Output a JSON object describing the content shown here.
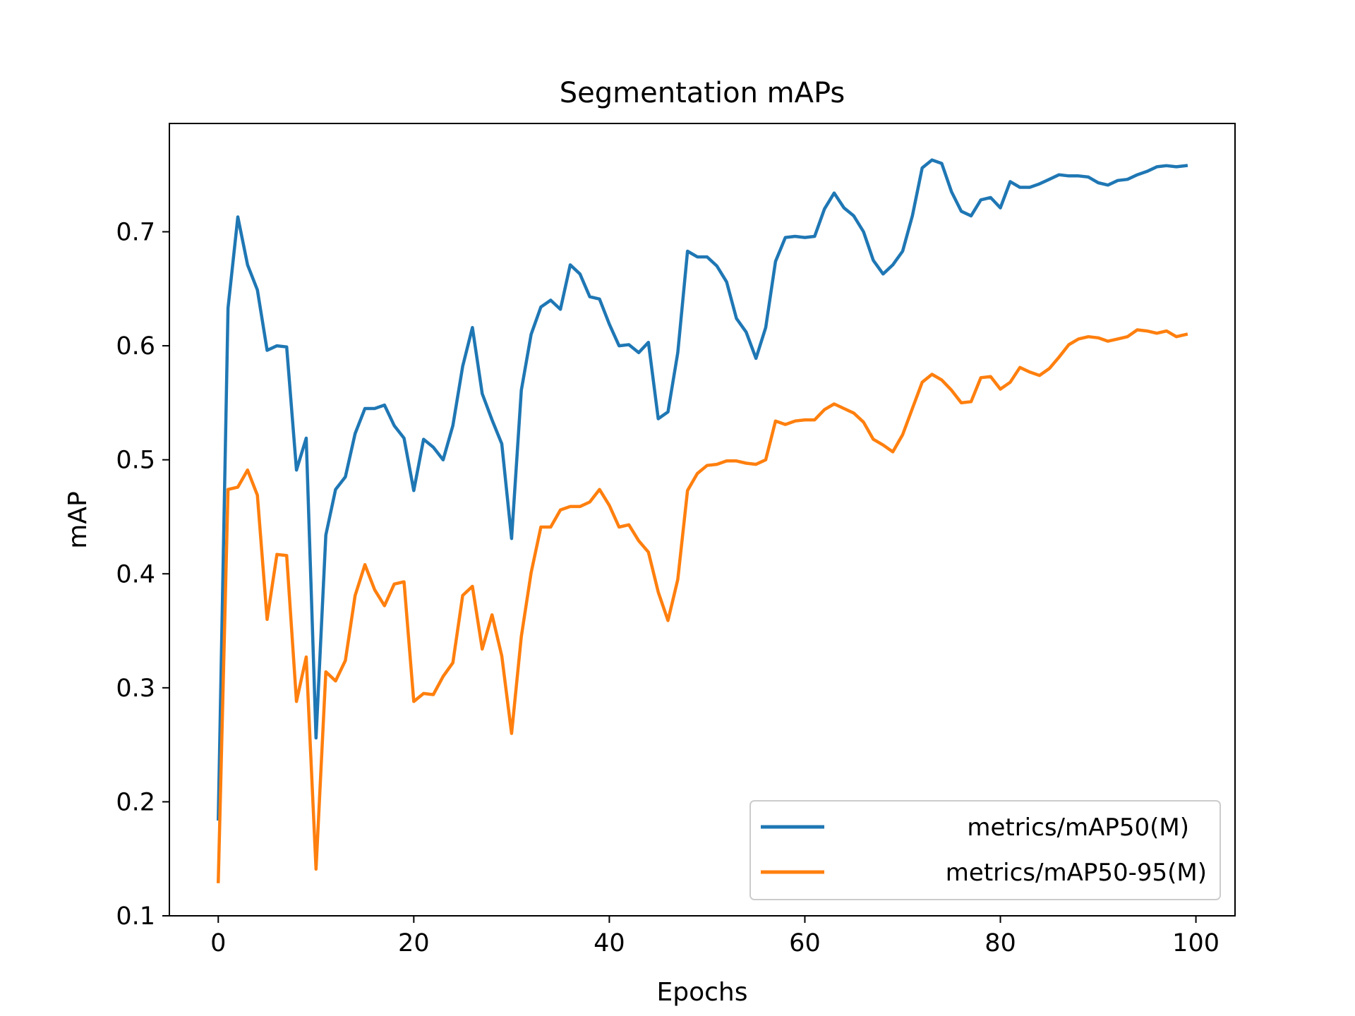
{
  "chart_data": {
    "type": "line",
    "title": "Segmentation mAPs",
    "xlabel": "Epochs",
    "ylabel": "mAP",
    "xlim": [
      -5,
      104
    ],
    "ylim": [
      0.1,
      0.795
    ],
    "xticks": [
      0,
      20,
      40,
      60,
      80,
      100
    ],
    "yticks": [
      0.1,
      0.2,
      0.3,
      0.4,
      0.5,
      0.6,
      0.7
    ],
    "xtick_labels": [
      "0",
      "20",
      "40",
      "60",
      "80",
      "100"
    ],
    "ytick_labels": [
      "0.1",
      "0.2",
      "0.3",
      "0.4",
      "0.5",
      "0.6",
      "0.7"
    ],
    "grid": false,
    "legend_position": "lower-right",
    "series": [
      {
        "name": "metrics/mAP50(M)",
        "color": "#1f77b4",
        "x": [
          0,
          1,
          2,
          3,
          4,
          5,
          6,
          7,
          8,
          9,
          10,
          11,
          12,
          13,
          14,
          15,
          16,
          17,
          18,
          19,
          20,
          21,
          22,
          23,
          24,
          25,
          26,
          27,
          28,
          29,
          30,
          31,
          32,
          33,
          34,
          35,
          36,
          37,
          38,
          39,
          40,
          41,
          42,
          43,
          44,
          45,
          46,
          47,
          48,
          49,
          50,
          51,
          52,
          53,
          54,
          55,
          56,
          57,
          58,
          59,
          60,
          61,
          62,
          63,
          64,
          65,
          66,
          67,
          68,
          69,
          70,
          71,
          72,
          73,
          74,
          75,
          76,
          77,
          78,
          79,
          80,
          81,
          82,
          83,
          84,
          85,
          86,
          87,
          88,
          89,
          90,
          91,
          92,
          93,
          94,
          95,
          96,
          97,
          98,
          99
        ],
        "values": [
          0.185,
          0.633,
          0.713,
          0.671,
          0.649,
          0.596,
          0.6,
          0.599,
          0.491,
          0.519,
          0.256,
          0.434,
          0.474,
          0.485,
          0.523,
          0.545,
          0.545,
          0.548,
          0.53,
          0.519,
          0.473,
          0.518,
          0.511,
          0.5,
          0.53,
          0.582,
          0.616,
          0.558,
          0.535,
          0.514,
          0.431,
          0.561,
          0.61,
          0.634,
          0.64,
          0.632,
          0.671,
          0.663,
          0.643,
          0.641,
          0.619,
          0.6,
          0.601,
          0.594,
          0.603,
          0.536,
          0.542,
          0.594,
          0.683,
          0.678,
          0.678,
          0.67,
          0.656,
          0.624,
          0.612,
          0.589,
          0.616,
          0.674,
          0.695,
          0.696,
          0.695,
          0.696,
          0.72,
          0.734,
          0.721,
          0.714,
          0.7,
          0.675,
          0.663,
          0.671,
          0.683,
          0.714,
          0.756,
          0.763,
          0.76,
          0.735,
          0.718,
          0.714,
          0.728,
          0.73,
          0.721,
          0.744,
          0.739,
          0.739,
          0.742,
          0.746,
          0.75,
          0.749,
          0.749,
          0.748,
          0.743,
          0.741,
          0.745,
          0.746,
          0.75,
          0.753,
          0.757,
          0.758,
          0.757,
          0.758
        ]
      },
      {
        "name": "metrics/mAP50-95(M)",
        "color": "#ff7f0e",
        "x": [
          0,
          1,
          2,
          3,
          4,
          5,
          6,
          7,
          8,
          9,
          10,
          11,
          12,
          13,
          14,
          15,
          16,
          17,
          18,
          19,
          20,
          21,
          22,
          23,
          24,
          25,
          26,
          27,
          28,
          29,
          30,
          31,
          32,
          33,
          34,
          35,
          36,
          37,
          38,
          39,
          40,
          41,
          42,
          43,
          44,
          45,
          46,
          47,
          48,
          49,
          50,
          51,
          52,
          53,
          54,
          55,
          56,
          57,
          58,
          59,
          60,
          61,
          62,
          63,
          64,
          65,
          66,
          67,
          68,
          69,
          70,
          71,
          72,
          73,
          74,
          75,
          76,
          77,
          78,
          79,
          80,
          81,
          82,
          83,
          84,
          85,
          86,
          87,
          88,
          89,
          90,
          91,
          92,
          93,
          94,
          95,
          96,
          97,
          98,
          99
        ],
        "values": [
          0.13,
          0.474,
          0.476,
          0.491,
          0.469,
          0.36,
          0.417,
          0.416,
          0.288,
          0.327,
          0.141,
          0.314,
          0.306,
          0.324,
          0.381,
          0.408,
          0.386,
          0.372,
          0.391,
          0.393,
          0.288,
          0.295,
          0.294,
          0.31,
          0.322,
          0.381,
          0.389,
          0.334,
          0.364,
          0.328,
          0.26,
          0.345,
          0.401,
          0.441,
          0.441,
          0.456,
          0.459,
          0.459,
          0.463,
          0.474,
          0.46,
          0.441,
          0.443,
          0.429,
          0.419,
          0.384,
          0.359,
          0.395,
          0.473,
          0.488,
          0.495,
          0.496,
          0.499,
          0.499,
          0.497,
          0.496,
          0.5,
          0.534,
          0.531,
          0.534,
          0.535,
          0.535,
          0.544,
          0.549,
          0.545,
          0.541,
          0.533,
          0.518,
          0.513,
          0.507,
          0.522,
          0.545,
          0.568,
          0.575,
          0.57,
          0.561,
          0.55,
          0.551,
          0.572,
          0.573,
          0.562,
          0.568,
          0.581,
          0.577,
          0.574,
          0.58,
          0.59,
          0.601,
          0.606,
          0.608,
          0.607,
          0.604,
          0.606,
          0.608,
          0.614,
          0.613,
          0.611,
          0.613,
          0.608,
          0.61
        ]
      }
    ]
  }
}
